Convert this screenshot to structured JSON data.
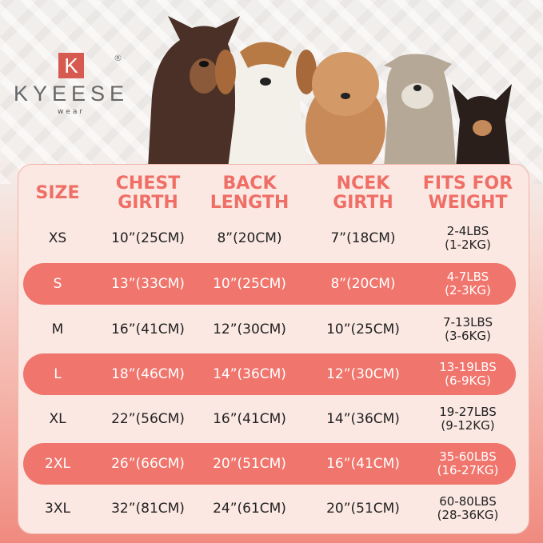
{
  "brand": {
    "letter": "K",
    "name": "KYEESE",
    "sub": "wear",
    "reg": "®"
  },
  "colors": {
    "accent": "#f0756c",
    "header_text": "#ef6e66",
    "panel": "#fbe8e2"
  },
  "headers": [
    [
      "SIZE",
      ""
    ],
    [
      "CHEST",
      "GIRTH"
    ],
    [
      "BACK",
      "LENGTH"
    ],
    [
      "NCEK",
      "GIRTH"
    ],
    [
      "FITS FOR",
      "WEIGHT"
    ]
  ],
  "rows": [
    {
      "size": "XS",
      "chest": "10”(25CM)",
      "back": "8”(20CM)",
      "neck": "7”(18CM)",
      "lbs": "2-4LBS",
      "kg": "(1-2KG)",
      "highlight": false
    },
    {
      "size": "S",
      "chest": "13”(33CM)",
      "back": "10”(25CM)",
      "neck": "8”(20CM)",
      "lbs": "4-7LBS",
      "kg": "(2-3KG)",
      "highlight": true
    },
    {
      "size": "M",
      "chest": "16”(41CM)",
      "back": "12”(30CM)",
      "neck": "10”(25CM)",
      "lbs": "7-13LBS",
      "kg": "(3-6KG)",
      "highlight": false
    },
    {
      "size": "L",
      "chest": "18”(46CM)",
      "back": "14”(36CM)",
      "neck": "12”(30CM)",
      "lbs": "13-19LBS",
      "kg": "(6-9KG)",
      "highlight": true
    },
    {
      "size": "XL",
      "chest": "22”(56CM)",
      "back": "16”(41CM)",
      "neck": "14”(36CM)",
      "lbs": "19-27LBS",
      "kg": "(9-12KG)",
      "highlight": false
    },
    {
      "size": "2XL",
      "chest": "26”(66CM)",
      "back": "20”(51CM)",
      "neck": "16”(41CM)",
      "lbs": "35-60LBS",
      "kg": "(16-27KG)",
      "highlight": true
    },
    {
      "size": "3XL",
      "chest": "32”(81CM)",
      "back": "24”(61CM)",
      "neck": "20”(51CM)",
      "lbs": "60-80LBS",
      "kg": "(28-36KG)",
      "highlight": false
    }
  ]
}
